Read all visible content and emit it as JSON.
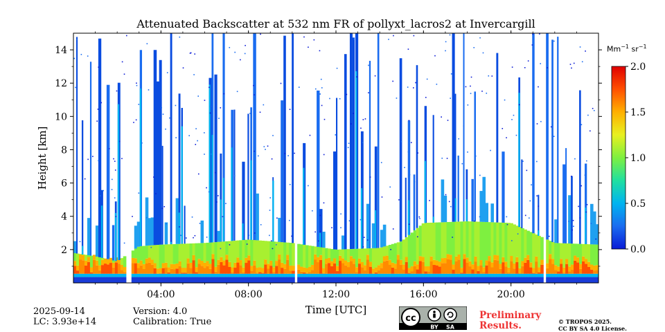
{
  "chart_data": {
    "type": "heatmap",
    "title": "Attenuated Backscatter at 532 nm FR of pollyxt_lacros2 at Invercargill",
    "xlabel": "Time [UTC]",
    "ylabel": "Height [km]",
    "x_ticks": [
      "04:00",
      "08:00",
      "12:00",
      "16:00",
      "20:00"
    ],
    "x_tick_hours": [
      4,
      8,
      12,
      16,
      20
    ],
    "xlim_hours": [
      0,
      24
    ],
    "y_ticks": [
      2,
      4,
      6,
      8,
      10,
      12,
      14
    ],
    "ylim": [
      0,
      15
    ],
    "colorbar": {
      "label_base": "Mm",
      "label_exp1": "−1",
      "label_mid": " sr",
      "label_exp2": "−1",
      "ticks": [
        "0.0",
        "0.5",
        "1.0",
        "1.5",
        "2.0"
      ],
      "tick_values": [
        0.0,
        0.5,
        1.0,
        1.5,
        2.0
      ],
      "range": [
        0.0,
        2.0
      ],
      "colormap": [
        "#0a1bd6",
        "#1a6cf0",
        "#00b4f0",
        "#20e0a0",
        "#7ef040",
        "#e8f020",
        "#ffb000",
        "#ff5000",
        "#e00000"
      ]
    },
    "missing_data_gaps_hours": [
      [
        2.45,
        2.62
      ],
      [
        10.12,
        10.25
      ],
      [
        21.52,
        21.63
      ]
    ],
    "boundary_layer_top_km": [
      [
        0.0,
        1.8
      ],
      [
        1.0,
        1.6
      ],
      [
        2.0,
        1.3
      ],
      [
        3.0,
        2.2
      ],
      [
        4.0,
        2.3
      ],
      [
        6.0,
        2.4
      ],
      [
        8.0,
        2.6
      ],
      [
        10.0,
        2.4
      ],
      [
        12.0,
        2.0
      ],
      [
        14.0,
        2.1
      ],
      [
        15.0,
        2.5
      ],
      [
        16.0,
        3.6
      ],
      [
        18.0,
        3.7
      ],
      [
        20.0,
        3.6
      ],
      [
        22.0,
        2.4
      ],
      [
        24.0,
        2.3
      ]
    ]
  },
  "footer": {
    "date": "2025-09-14",
    "lc": "LC: 3.93e+14",
    "version": "Version: 4.0",
    "calibration": "Calibration: True",
    "preliminary_line1": "Preliminary",
    "preliminary_line2": "Results.",
    "copyright_line1": "© TROPOS 2025.",
    "copyright_line2": "CC BY SA 4.0 License.",
    "cc_text_by": "BY",
    "cc_text_sa": "SA",
    "cc_text_cc": "cc"
  },
  "colors": {
    "preliminary": "#ee3333"
  }
}
